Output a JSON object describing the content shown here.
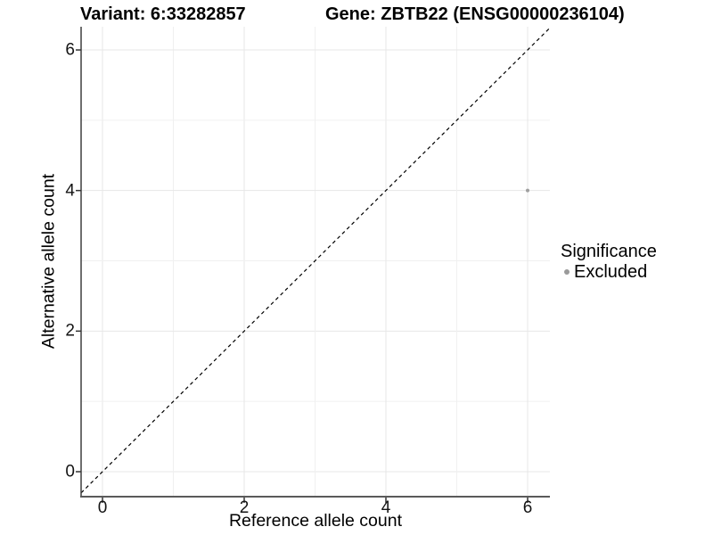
{
  "title": {
    "variant": "Variant: 6:33282857",
    "gene": "Gene: ZBTB22 (ENSG00000236104)"
  },
  "axes": {
    "x": {
      "label": "Reference allele count",
      "ticks": [
        0,
        2,
        4,
        6
      ]
    },
    "y": {
      "label": "Alternative allele count",
      "ticks": [
        0,
        2,
        4,
        6
      ]
    }
  },
  "legend": {
    "title": "Significance",
    "items": [
      {
        "label": "Excluded",
        "color": "#9a9a9a",
        "marker": "circle"
      }
    ]
  },
  "chart_data": {
    "type": "scatter",
    "title": "Variant: 6:33282857   Gene: ZBTB22 (ENSG00000236104)",
    "xlabel": "Reference allele count",
    "ylabel": "Alternative allele count",
    "xlim": [
      -0.3,
      6.31
    ],
    "ylim": [
      -0.36,
      6.33
    ],
    "x_breaks": [
      0,
      2,
      4,
      6
    ],
    "y_breaks": [
      0,
      2,
      4,
      6
    ],
    "grid_positions": [
      0,
      1,
      2,
      3,
      4,
      5,
      6
    ],
    "grid": "on",
    "legend_position": "right",
    "reference_line": {
      "type": "identity",
      "slope": 1,
      "intercept": 0,
      "style": "dashed",
      "color": "#000000"
    },
    "series": [
      {
        "name": "Excluded",
        "color": "#9f9f9f",
        "points": [
          {
            "x": 6,
            "y": 4
          }
        ]
      }
    ]
  },
  "colors": {
    "background": "#ffffff",
    "grid_major": "#e7e7e7",
    "grid_minor": "#f0f0f0",
    "axis_line_x": "#5a5a5a",
    "axis_line_y": "#3f3f3f",
    "tick": "#333333",
    "point": "#9f9f9f"
  }
}
